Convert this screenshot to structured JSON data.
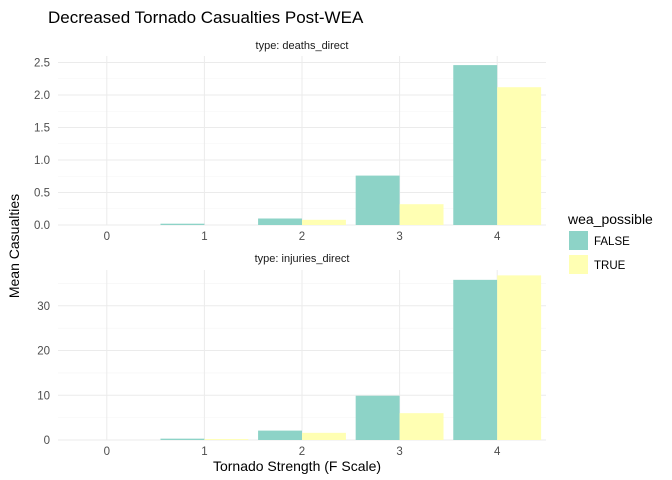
{
  "chart_data": {
    "type": "bar",
    "title": "Decreased Tornado Casualties Post-WEA",
    "xlabel": "Tornado Strength (F Scale)",
    "ylabel": "Mean Casualties",
    "categories": [
      "0",
      "1",
      "2",
      "3",
      "4"
    ],
    "legend": {
      "title": "wea_possible",
      "placement": "right",
      "entries": [
        {
          "label": "FALSE",
          "color": "#8dd3c7"
        },
        {
          "label": "TRUE",
          "color": "#ffffb3"
        }
      ]
    },
    "grid": true,
    "facets": [
      {
        "strip": "type: deaths_direct",
        "ylim": [
          0,
          2.6
        ],
        "yticks": [
          0.0,
          0.5,
          1.0,
          1.5,
          2.0,
          2.5
        ],
        "ytick_labels": [
          "0.0",
          "0.5",
          "1.0",
          "1.5",
          "2.0",
          "2.5"
        ],
        "series": [
          {
            "name": "FALSE",
            "values": [
              0,
              0.02,
              0.1,
              0.76,
              2.46
            ]
          },
          {
            "name": "TRUE",
            "values": [
              0,
              0,
              0.08,
              0.32,
              2.12
            ]
          }
        ]
      },
      {
        "strip": "type: injuries_direct",
        "ylim": [
          0,
          38
        ],
        "yticks": [
          0,
          10,
          20,
          30
        ],
        "ytick_labels": [
          "0",
          "10",
          "20",
          "30"
        ],
        "series": [
          {
            "name": "FALSE",
            "values": [
              0,
              0.3,
              2.1,
              9.9,
              35.8
            ]
          },
          {
            "name": "TRUE",
            "values": [
              0,
              0.2,
              1.6,
              6.0,
              36.8
            ]
          }
        ]
      }
    ]
  }
}
